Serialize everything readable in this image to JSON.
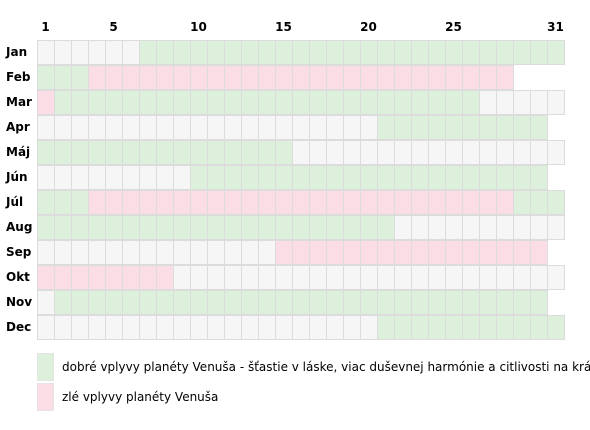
{
  "colors": {
    "good": "#dcf0dc",
    "bad": "#fbdde5",
    "empty": "#f6f6f6",
    "grid": "#dcdcdc"
  },
  "day_labels": [
    "1",
    "5",
    "10",
    "15",
    "20",
    "25",
    "31"
  ],
  "label_days": [
    1,
    5,
    10,
    15,
    20,
    25,
    31
  ],
  "months": [
    {
      "name": "Jan",
      "days": 31,
      "segments": [
        {
          "from": 1,
          "to": 6,
          "kind": "empty"
        },
        {
          "from": 7,
          "to": 31,
          "kind": "good"
        }
      ]
    },
    {
      "name": "Feb",
      "days": 28,
      "segments": [
        {
          "from": 1,
          "to": 3,
          "kind": "good"
        },
        {
          "from": 4,
          "to": 28,
          "kind": "bad"
        }
      ]
    },
    {
      "name": "Mar",
      "days": 31,
      "segments": [
        {
          "from": 1,
          "to": 1,
          "kind": "bad"
        },
        {
          "from": 2,
          "to": 26,
          "kind": "good"
        },
        {
          "from": 27,
          "to": 31,
          "kind": "empty"
        }
      ]
    },
    {
      "name": "Apr",
      "days": 30,
      "segments": [
        {
          "from": 1,
          "to": 20,
          "kind": "empty"
        },
        {
          "from": 21,
          "to": 30,
          "kind": "good"
        }
      ]
    },
    {
      "name": "Máj",
      "days": 31,
      "segments": [
        {
          "from": 1,
          "to": 15,
          "kind": "good"
        },
        {
          "from": 16,
          "to": 31,
          "kind": "empty"
        }
      ]
    },
    {
      "name": "Jún",
      "days": 30,
      "segments": [
        {
          "from": 1,
          "to": 9,
          "kind": "empty"
        },
        {
          "from": 10,
          "to": 30,
          "kind": "good"
        }
      ]
    },
    {
      "name": "Júl",
      "days": 31,
      "segments": [
        {
          "from": 1,
          "to": 3,
          "kind": "good"
        },
        {
          "from": 4,
          "to": 28,
          "kind": "bad"
        },
        {
          "from": 29,
          "to": 31,
          "kind": "good"
        }
      ]
    },
    {
      "name": "Aug",
      "days": 31,
      "segments": [
        {
          "from": 1,
          "to": 21,
          "kind": "good"
        },
        {
          "from": 22,
          "to": 31,
          "kind": "empty"
        }
      ]
    },
    {
      "name": "Sep",
      "days": 30,
      "segments": [
        {
          "from": 1,
          "to": 14,
          "kind": "empty"
        },
        {
          "from": 15,
          "to": 30,
          "kind": "bad"
        }
      ]
    },
    {
      "name": "Okt",
      "days": 31,
      "segments": [
        {
          "from": 1,
          "to": 8,
          "kind": "bad"
        },
        {
          "from": 9,
          "to": 31,
          "kind": "empty"
        }
      ]
    },
    {
      "name": "Nov",
      "days": 30,
      "segments": [
        {
          "from": 1,
          "to": 1,
          "kind": "empty"
        },
        {
          "from": 2,
          "to": 30,
          "kind": "good"
        }
      ]
    },
    {
      "name": "Dec",
      "days": 31,
      "segments": [
        {
          "from": 1,
          "to": 20,
          "kind": "empty"
        },
        {
          "from": 21,
          "to": 31,
          "kind": "good"
        }
      ]
    }
  ],
  "legend": {
    "good": "dobré vplyvy planéty Venuša - šťastie v láske, viac duševnej harmónie a citlivosti na krásu",
    "bad": "zlé vplyvy planéty Venuša"
  }
}
